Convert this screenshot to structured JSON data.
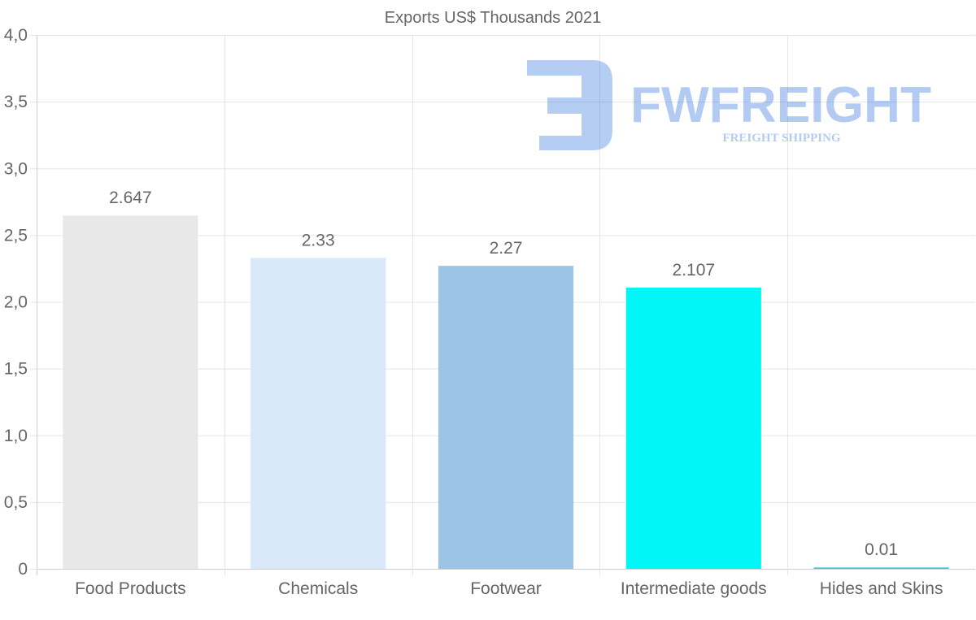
{
  "chart_data": {
    "type": "bar",
    "title": "Exports US$ Thousands 2021",
    "categories": [
      "Food Products",
      "Chemicals",
      "Footwear",
      "Intermediate goods",
      "Hides and Skins"
    ],
    "values": [
      2.647,
      2.33,
      2.27,
      2.107,
      0.01
    ],
    "value_labels": [
      "2.647",
      "2.33",
      "2.27",
      "2.107",
      "0.01"
    ],
    "colors": [
      "#e8e8e8",
      "#d9e9f9",
      "#9bc4e7",
      "#00f6f7",
      "#36c3e8"
    ],
    "ylim": [
      0,
      4
    ],
    "yticks": [
      0,
      0.5,
      1.0,
      1.5,
      2.0,
      2.5,
      3.0,
      3.5,
      4.0
    ],
    "ytick_labels": [
      "0",
      "0,5",
      "1,0",
      "1,5",
      "2,0",
      "2,5",
      "3,0",
      "3,5",
      "4,0"
    ],
    "xlabel": "",
    "ylabel": "",
    "grid": true,
    "legend": "none"
  },
  "watermark": {
    "brand": "FWFREIGHT",
    "tagline": "FREIGHT SHIPPING",
    "color": "#1d63dc"
  }
}
